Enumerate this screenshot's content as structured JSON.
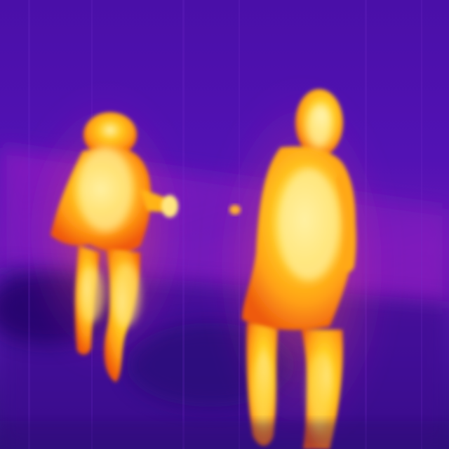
{
  "image": {
    "kind": "thermal-camera-frame",
    "palette": {
      "cold": "#3a0d8c",
      "cool": "#5a14b8",
      "mid": "#b01dc4",
      "warm": "#ff6a10",
      "hot": "#ffc21a",
      "hottest": "#fff4a8"
    },
    "subjects": [
      {
        "name": "person-left",
        "pose": "standing"
      },
      {
        "name": "person-right",
        "pose": "standing"
      }
    ],
    "objects": [
      {
        "name": "handheld-warm-object"
      },
      {
        "name": "small-warm-spot"
      }
    ]
  }
}
